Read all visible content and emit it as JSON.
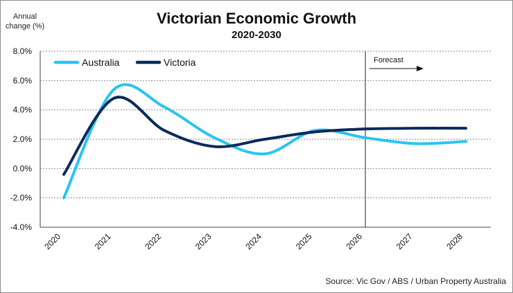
{
  "chart_data": {
    "type": "line",
    "title": "Victorian Economic Growth",
    "subtitle": "2020-2030",
    "ylabel_line1": "Annual",
    "ylabel_line2": "change (%)",
    "x": [
      "2020",
      "2021",
      "2022",
      "2023",
      "2024",
      "2025",
      "2026",
      "2027",
      "2028"
    ],
    "ylim": [
      -4,
      8
    ],
    "yticks": [
      "-4.0%",
      "-2.0%",
      "0.0%",
      "2.0%",
      "4.0%",
      "6.0%",
      "8.0%"
    ],
    "grid": true,
    "legend_position": "top-left",
    "series": [
      {
        "name": "Australia",
        "color": "#29c5ef",
        "values": [
          -2.0,
          5.4,
          4.2,
          2.1,
          1.0,
          2.6,
          2.1,
          1.7,
          1.85
        ]
      },
      {
        "name": "Victoria",
        "color": "#0b2a5b",
        "values": [
          -0.4,
          4.8,
          2.6,
          1.5,
          2.0,
          2.5,
          2.7,
          2.75,
          2.75
        ]
      }
    ],
    "annotation": "Forecast",
    "forecast_after": "2026",
    "source": "Source: Vic Gov / ABS / Urban Property Australia"
  }
}
